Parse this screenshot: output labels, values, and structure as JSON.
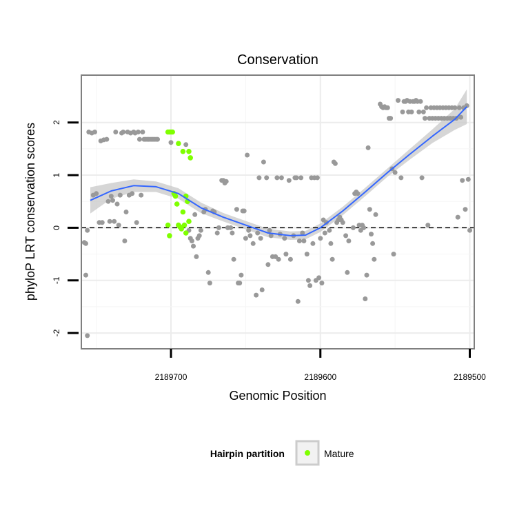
{
  "chart_data": {
    "type": "scatter",
    "title": "Conservation",
    "xlabel": "Genomic Position",
    "ylabel": "phyloP LRT conservation scores",
    "x_reversed": true,
    "xlim": [
      2189760,
      2189497
    ],
    "ylim": [
      -2.3,
      2.9
    ],
    "x_ticks": [
      2189700,
      2189600,
      2189500
    ],
    "x_tick_labels": [
      "2189700",
      "2189600",
      "2189500"
    ],
    "y_ticks": [
      -2,
      -1,
      0,
      1,
      2
    ],
    "y_tick_labels": [
      "-2",
      "-1",
      "0",
      "1",
      "2"
    ],
    "reference_line": {
      "y": 0,
      "style": "dashed"
    },
    "grid": true,
    "legend": {
      "title": "Hairpin partition",
      "position": "bottom",
      "entries": [
        {
          "label": "Mature",
          "color": "#7fff00"
        }
      ]
    },
    "colors": {
      "points": "#999999",
      "mature": "#7fff00",
      "smooth": "#3366ff",
      "ribbon": "#cccccc",
      "panel_border": "#7f7f7f"
    },
    "series": [
      {
        "kind": "points",
        "values": [
          [
            2189758,
            -0.28
          ],
          [
            2189757,
            -0.3
          ],
          [
            2189757,
            -0.9
          ],
          [
            2189756,
            -0.05
          ],
          [
            2189755,
            1.82
          ],
          [
            2189753,
            1.8
          ],
          [
            2189752,
            0.62
          ],
          [
            2189751,
            1.82
          ],
          [
            2189750,
            0.65
          ],
          [
            2189748,
            0.1
          ],
          [
            2189747,
            1.65
          ],
          [
            2189746,
            0.1
          ],
          [
            2189745,
            1.67
          ],
          [
            2189743,
            1.68
          ],
          [
            2189742,
            0.5
          ],
          [
            2189741,
            0.12
          ],
          [
            2189740,
            0.6
          ],
          [
            2189739,
            0.52
          ],
          [
            2189738,
            0.12
          ],
          [
            2189737,
            1.82
          ],
          [
            2189736,
            0.45
          ],
          [
            2189735,
            0.05
          ],
          [
            2189734,
            0.62
          ],
          [
            2189733,
            1.8
          ],
          [
            2189732,
            1.82
          ],
          [
            2189731,
            -0.25
          ],
          [
            2189730,
            0.3
          ],
          [
            2189729,
            1.82
          ],
          [
            2189728,
            0.62
          ],
          [
            2189727,
            1.8
          ],
          [
            2189726,
            0.65
          ],
          [
            2189725,
            1.82
          ],
          [
            2189724,
            1.8
          ],
          [
            2189723,
            0.1
          ],
          [
            2189722,
            1.82
          ],
          [
            2189721,
            1.68
          ],
          [
            2189720,
            0.62
          ],
          [
            2189719,
            1.82
          ],
          [
            2189718,
            1.68
          ],
          [
            2189717,
            1.68
          ],
          [
            2189716,
            1.68
          ],
          [
            2189715,
            1.68
          ],
          [
            2189714,
            1.68
          ],
          [
            2189713,
            1.68
          ],
          [
            2189712,
            1.68
          ],
          [
            2189711,
            1.68
          ],
          [
            2189710,
            1.68
          ],
          [
            2189709,
            1.68
          ],
          [
            2189700,
            1.62
          ],
          [
            2189690,
            1.58
          ],
          [
            2189688,
            -0.05
          ],
          [
            2189687,
            -0.2
          ],
          [
            2189686,
            -0.25
          ],
          [
            2189685,
            -0.35
          ],
          [
            2189684,
            0.25
          ],
          [
            2189683,
            -0.55
          ],
          [
            2189682,
            -0.2
          ],
          [
            2189681,
            -0.15
          ],
          [
            2189680,
            -0.05
          ],
          [
            2189678,
            0.3
          ],
          [
            2189677,
            0.35
          ],
          [
            2189675,
            -0.85
          ],
          [
            2189674,
            -1.05
          ],
          [
            2189672,
            0.32
          ],
          [
            2189671,
            0.3
          ],
          [
            2189669,
            -0.1
          ],
          [
            2189668,
            0.0
          ],
          [
            2189666,
            0.9
          ],
          [
            2189665,
            0.9
          ],
          [
            2189664,
            0.85
          ],
          [
            2189663,
            0.88
          ],
          [
            2189662,
            0.0
          ],
          [
            2189660,
            0.0
          ],
          [
            2189659,
            -0.1
          ],
          [
            2189658,
            -0.6
          ],
          [
            2189656,
            0.35
          ],
          [
            2189655,
            -1.05
          ],
          [
            2189654,
            -1.05
          ],
          [
            2189653,
            -0.9
          ],
          [
            2189652,
            0.32
          ],
          [
            2189651,
            0.32
          ],
          [
            2189650,
            -0.2
          ],
          [
            2189649,
            1.38
          ],
          [
            2189648,
            -0.05
          ],
          [
            2189647,
            -0.15
          ],
          [
            2189645,
            -0.3
          ],
          [
            2189643,
            -1.28
          ],
          [
            2189642,
            -0.1
          ],
          [
            2189641,
            0.95
          ],
          [
            2189640,
            -0.2
          ],
          [
            2189639,
            -1.18
          ],
          [
            2189638,
            1.25
          ],
          [
            2189636,
            0.95
          ],
          [
            2189635,
            -0.7
          ],
          [
            2189634,
            -0.05
          ],
          [
            2189633,
            -0.15
          ],
          [
            2189632,
            -0.55
          ],
          [
            2189630,
            -0.55
          ],
          [
            2189629,
            0.95
          ],
          [
            2189628,
            -0.6
          ],
          [
            2189627,
            -0.12
          ],
          [
            2189626,
            0.95
          ],
          [
            2189624,
            -0.2
          ],
          [
            2189623,
            -0.5
          ],
          [
            2189621,
            0.9
          ],
          [
            2189620,
            -0.6
          ],
          [
            2189618,
            -0.15
          ],
          [
            2189617,
            0.95
          ],
          [
            2189616,
            0.95
          ],
          [
            2189615,
            -1.4
          ],
          [
            2189614,
            -0.25
          ],
          [
            2189613,
            0.95
          ],
          [
            2189612,
            -0.1
          ],
          [
            2189611,
            -0.25
          ],
          [
            2189609,
            -0.5
          ],
          [
            2189608,
            -1.0
          ],
          [
            2189607,
            -1.1
          ],
          [
            2189606,
            0.95
          ],
          [
            2189605,
            -0.3
          ],
          [
            2189604,
            0.95
          ],
          [
            2189603,
            -1.0
          ],
          [
            2189602,
            0.95
          ],
          [
            2189601,
            -0.95
          ],
          [
            2189600,
            -0.2
          ],
          [
            2189599,
            -1.05
          ],
          [
            2189598,
            0.15
          ],
          [
            2189597,
            -0.1
          ],
          [
            2189596,
            0.1
          ],
          [
            2189594,
            -0.05
          ],
          [
            2189593,
            -0.3
          ],
          [
            2189592,
            -0.6
          ],
          [
            2189591,
            1.25
          ],
          [
            2189590,
            1.22
          ],
          [
            2189589,
            0.1
          ],
          [
            2189588,
            0.15
          ],
          [
            2189587,
            0.2
          ],
          [
            2189586,
            0.15
          ],
          [
            2189585,
            0.1
          ],
          [
            2189583,
            -0.15
          ],
          [
            2189582,
            -0.85
          ],
          [
            2189581,
            -0.25
          ],
          [
            2189578,
            0.0
          ],
          [
            2189577,
            0.65
          ],
          [
            2189576,
            0.68
          ],
          [
            2189575,
            0.65
          ],
          [
            2189574,
            0.05
          ],
          [
            2189573,
            -0.05
          ],
          [
            2189572,
            0.05
          ],
          [
            2189571,
            0.0
          ],
          [
            2189570,
            -1.35
          ],
          [
            2189569,
            -0.9
          ],
          [
            2189568,
            1.52
          ],
          [
            2189567,
            0.35
          ],
          [
            2189566,
            -0.12
          ],
          [
            2189565,
            -0.3
          ],
          [
            2189564,
            -0.6
          ],
          [
            2189563,
            0.25
          ],
          [
            2189560,
            2.35
          ],
          [
            2189559,
            2.3
          ],
          [
            2189558,
            2.28
          ],
          [
            2189557,
            2.3
          ],
          [
            2189556,
            2.28
          ],
          [
            2189555,
            2.28
          ],
          [
            2189554,
            2.08
          ],
          [
            2189553,
            2.08
          ],
          [
            2189552,
            1.12
          ],
          [
            2189551,
            -0.5
          ],
          [
            2189550,
            1.05
          ],
          [
            2189548,
            2.42
          ],
          [
            2189546,
            0.95
          ],
          [
            2189545,
            2.2
          ],
          [
            2189544,
            2.4
          ],
          [
            2189543,
            2.4
          ],
          [
            2189542,
            2.42
          ],
          [
            2189541,
            2.2
          ],
          [
            2189540,
            2.4
          ],
          [
            2189539,
            2.2
          ],
          [
            2189538,
            2.4
          ],
          [
            2189537,
            2.4
          ],
          [
            2189536,
            2.42
          ],
          [
            2189535,
            2.4
          ],
          [
            2189534,
            2.2
          ],
          [
            2189533,
            2.4
          ],
          [
            2189532,
            0.95
          ],
          [
            2189531,
            2.2
          ],
          [
            2189530,
            2.08
          ],
          [
            2189529,
            2.28
          ],
          [
            2189528,
            0.05
          ],
          [
            2189527,
            2.08
          ],
          [
            2189526,
            2.28
          ],
          [
            2189525,
            2.08
          ],
          [
            2189524,
            2.28
          ],
          [
            2189523,
            2.08
          ],
          [
            2189522,
            2.28
          ],
          [
            2189521,
            2.08
          ],
          [
            2189520,
            2.28
          ],
          [
            2189519,
            2.08
          ],
          [
            2189518,
            2.28
          ],
          [
            2189517,
            2.08
          ],
          [
            2189516,
            2.28
          ],
          [
            2189515,
            2.08
          ],
          [
            2189514,
            2.28
          ],
          [
            2189513,
            2.08
          ],
          [
            2189512,
            2.28
          ],
          [
            2189511,
            2.08
          ],
          [
            2189510,
            2.28
          ],
          [
            2189509,
            2.08
          ],
          [
            2189508,
            0.2
          ],
          [
            2189507,
            2.28
          ],
          [
            2189506,
            2.1
          ],
          [
            2189505,
            0.9
          ],
          [
            2189504,
            2.28
          ],
          [
            2189503,
            0.35
          ],
          [
            2189502,
            2.32
          ],
          [
            2189501,
            0.92
          ],
          [
            2189500,
            -0.05
          ],
          [
            2189756,
            -2.05
          ]
        ]
      },
      {
        "kind": "points",
        "values": [
          [
            2189702,
            1.82
          ],
          [
            2189701,
            1.82
          ],
          [
            2189700,
            1.82
          ],
          [
            2189699,
            1.82
          ],
          [
            2189695,
            1.6
          ],
          [
            2189692,
            1.45
          ],
          [
            2189688,
            1.45
          ],
          [
            2189687,
            1.33
          ],
          [
            2189702,
            0.05
          ],
          [
            2189701,
            -0.15
          ],
          [
            2189698,
            0.65
          ],
          [
            2189697,
            0.6
          ],
          [
            2189696,
            0.45
          ],
          [
            2189695,
            0.05
          ],
          [
            2189694,
            0.02
          ],
          [
            2189693,
            -0.02
          ],
          [
            2189692,
            0.3
          ],
          [
            2189691,
            0.05
          ],
          [
            2189690,
            0.6
          ],
          [
            2189690,
            -0.1
          ],
          [
            2189689,
            0.5
          ],
          [
            2189688,
            0.12
          ]
        ]
      },
      {
        "kind": "smooth",
        "x": [
          2189754,
          2189740,
          2189725,
          2189710,
          2189695,
          2189680,
          2189665,
          2189650,
          2189635,
          2189620,
          2189610,
          2189600,
          2189585,
          2189570,
          2189555,
          2189540,
          2189525,
          2189510,
          2189502
        ],
        "y": [
          0.52,
          0.7,
          0.8,
          0.78,
          0.65,
          0.38,
          0.2,
          0.05,
          -0.1,
          -0.15,
          -0.14,
          0.0,
          0.32,
          0.68,
          1.05,
          1.4,
          1.74,
          2.06,
          2.3
        ],
        "ci_half_width": [
          0.25,
          0.15,
          0.12,
          0.1,
          0.1,
          0.1,
          0.08,
          0.08,
          0.08,
          0.08,
          0.08,
          0.08,
          0.08,
          0.08,
          0.08,
          0.1,
          0.13,
          0.2,
          0.33
        ]
      }
    ]
  }
}
